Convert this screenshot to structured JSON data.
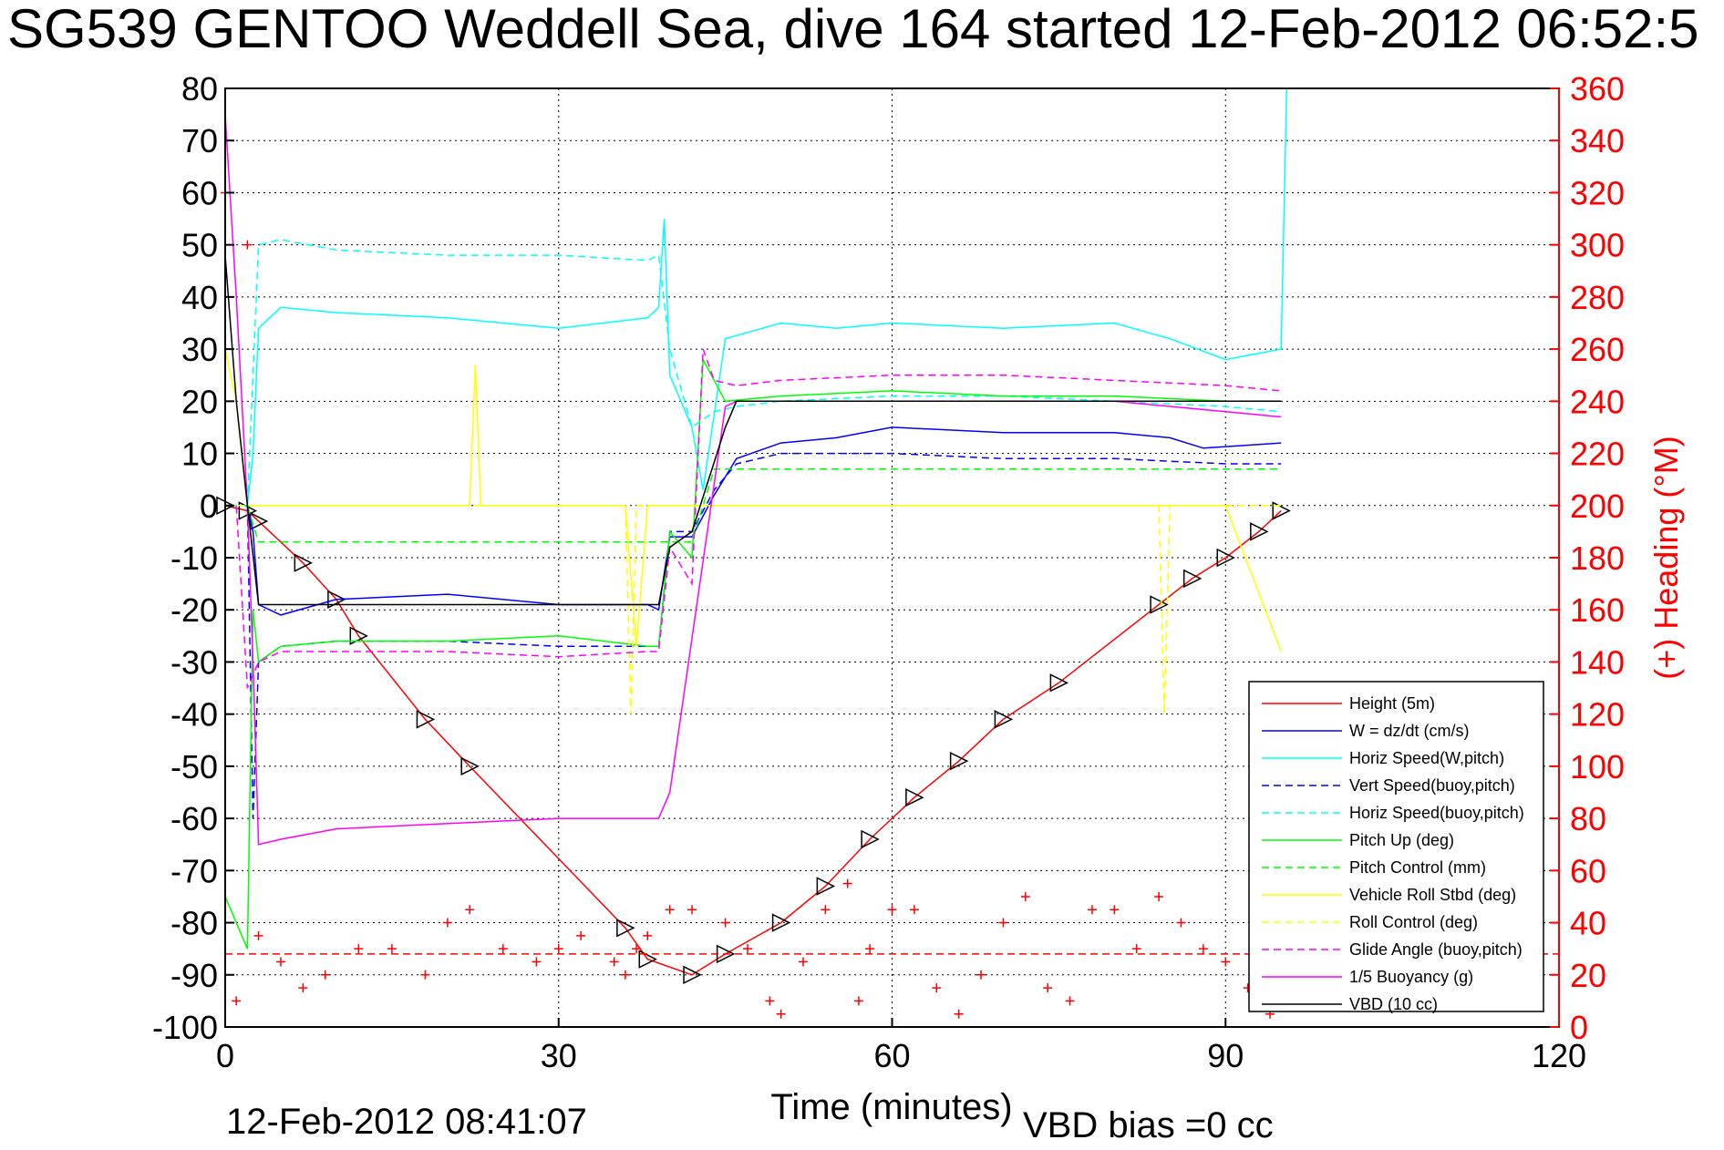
{
  "chart_data": {
    "type": "line",
    "title": "SG539 GENTOO Weddell Sea, dive 164 started 12-Feb-2012 06:52:5",
    "xlabel": "Time (minutes)",
    "ylabel_right": "(+) Heading (°M)",
    "xlim": [
      0,
      120
    ],
    "ylim": [
      -100,
      80
    ],
    "ylim_right": [
      0,
      360
    ],
    "x_ticks": [
      0,
      30,
      60,
      90,
      120
    ],
    "y_ticks": [
      80,
      70,
      60,
      50,
      40,
      30,
      20,
      10,
      0,
      -10,
      -20,
      -30,
      -40,
      -50,
      -60,
      -70,
      -80,
      -90,
      -100
    ],
    "y_ticks_right": [
      360,
      340,
      320,
      300,
      280,
      260,
      240,
      220,
      200,
      180,
      160,
      140,
      120,
      100,
      80,
      60,
      40,
      20,
      0
    ],
    "grid": true,
    "legend_position": "bottom-right",
    "footer_date": "12-Feb-2012 08:41:07",
    "footer_bias": "VBD bias =0 cc",
    "series": [
      {
        "name": "Height (5m)",
        "color": "#ff0000",
        "style": "solid",
        "markers": "triangles",
        "x": [
          0,
          2,
          3,
          7,
          10,
          12,
          18,
          22,
          36,
          38,
          42,
          45,
          50,
          54,
          58,
          62,
          66,
          70,
          75,
          84,
          87,
          90,
          93,
          95
        ],
        "y": [
          0,
          -1,
          -3,
          -11,
          -18,
          -25,
          -41,
          -50,
          -81,
          -87,
          -90,
          -86,
          -80,
          -73,
          -64,
          -56,
          -49,
          -41,
          -34,
          -19,
          -14,
          -10,
          -5,
          -1
        ]
      },
      {
        "name": "W = dz/dt (cm/s)",
        "color": "#0000ff",
        "style": "solid",
        "x": [
          0,
          1,
          2,
          2.5,
          3,
          5,
          10,
          20,
          30,
          38,
          39,
          40,
          42,
          44,
          46,
          50,
          55,
          60,
          70,
          80,
          85,
          88,
          95
        ],
        "y": [
          0,
          0,
          0,
          -5,
          -19,
          -21,
          -18,
          -17,
          -19,
          -19,
          -20,
          -6,
          -6,
          2,
          9,
          12,
          13,
          15,
          14,
          14,
          13,
          11,
          12
        ]
      },
      {
        "name": "Horiz Speed(W,pitch)",
        "color": "#00ffff",
        "style": "solid",
        "x": [
          0,
          1,
          2,
          2.5,
          3,
          5,
          10,
          20,
          30,
          38,
          39,
          39.5,
          40,
          42,
          43,
          45,
          50,
          55,
          60,
          70,
          80,
          85,
          90,
          95,
          95.5
        ],
        "y": [
          0,
          0,
          0,
          10,
          34,
          38,
          37,
          36,
          34,
          36,
          38,
          55,
          25,
          15,
          3,
          32,
          35,
          34,
          35,
          34,
          35,
          32,
          28,
          30,
          80
        ]
      },
      {
        "name": "Vert Speed(buoy,pitch)",
        "color": "#0000ff",
        "style": "dashed",
        "x": [
          0,
          1,
          2,
          2.5,
          3,
          5,
          10,
          20,
          30,
          38,
          39,
          40,
          42,
          44,
          46,
          50,
          60,
          70,
          80,
          90,
          95
        ],
        "y": [
          0,
          0,
          0,
          -60,
          -30,
          -27,
          -26,
          -26,
          -27,
          -27,
          -27,
          -5,
          -5,
          3,
          8,
          10,
          10,
          9,
          9,
          8,
          8
        ]
      },
      {
        "name": "Horiz Speed(buoy,pitch)",
        "color": "#00ffff",
        "style": "dashed",
        "x": [
          0,
          1,
          2,
          3,
          5,
          10,
          20,
          30,
          38,
          39,
          40,
          42,
          44,
          46,
          50,
          60,
          70,
          80,
          90,
          95
        ],
        "y": [
          0,
          0,
          0,
          50,
          51,
          49,
          48,
          48,
          47,
          48,
          30,
          15,
          18,
          19,
          20,
          21,
          21,
          20,
          19,
          18
        ]
      },
      {
        "name": "Pitch Up (deg)",
        "color": "#00ff00",
        "style": "solid",
        "x": [
          0,
          1,
          2,
          2.5,
          3,
          5,
          10,
          20,
          30,
          38,
          39,
          40,
          42,
          43,
          45,
          50,
          60,
          70,
          80,
          90,
          95
        ],
        "y": [
          -75,
          -80,
          -85,
          -20,
          -30,
          -27,
          -26,
          -26,
          -25,
          -27,
          -27,
          -5,
          -10,
          28,
          20,
          21,
          22,
          21,
          21,
          20,
          20
        ]
      },
      {
        "name": "Pitch Control (mm)",
        "color": "#00ff00",
        "style": "dashed",
        "x": [
          0,
          1,
          2,
          3,
          5,
          10,
          20,
          30,
          38,
          39,
          40,
          42,
          44,
          46,
          50,
          60,
          70,
          80,
          90,
          95
        ],
        "y": [
          0,
          0,
          0,
          -7,
          -7,
          -7,
          -7,
          -7,
          -7,
          -7,
          -7,
          -7,
          7,
          7,
          7,
          7,
          7,
          7,
          7,
          7
        ]
      },
      {
        "name": "Vehicle Roll Stbd (deg)",
        "color": "#ffff00",
        "style": "solid",
        "x": [
          0,
          1,
          2,
          3,
          5,
          10,
          20,
          22,
          22.5,
          23,
          30,
          36,
          37,
          38,
          40,
          45,
          50,
          60,
          70,
          80,
          90,
          95
        ],
        "y": [
          30,
          20,
          0,
          0,
          0,
          0,
          0,
          0,
          27,
          0,
          0,
          0,
          -27,
          0,
          0,
          0,
          0,
          0,
          0,
          0,
          0,
          -28
        ]
      },
      {
        "name": "Roll Control (deg)",
        "color": "#ffff00",
        "style": "dashed",
        "x": [
          0,
          1,
          2,
          3,
          5,
          10,
          20,
          30,
          36,
          36.5,
          37,
          40,
          45,
          50,
          60,
          70,
          80,
          84,
          84.5,
          85,
          90,
          95
        ],
        "y": [
          0,
          0,
          0,
          0,
          0,
          0,
          0,
          0,
          0,
          -40,
          0,
          0,
          0,
          0,
          0,
          0,
          0,
          0,
          -40,
          0,
          0,
          0
        ]
      },
      {
        "name": "Glide Angle (buoy,pitch)",
        "color": "#ff00ff",
        "style": "dashed",
        "x": [
          0,
          1,
          2,
          3,
          5,
          10,
          20,
          30,
          38,
          39,
          40,
          42,
          43,
          44,
          46,
          50,
          60,
          70,
          80,
          90,
          95
        ],
        "y": [
          0,
          0,
          -35,
          -30,
          -28,
          -28,
          -28,
          -29,
          -28,
          -28,
          -8,
          -15,
          30,
          24,
          23,
          24,
          25,
          25,
          24,
          23,
          22
        ]
      },
      {
        "name": "1/5 Buoyancy (g)",
        "color": "#ff00ff",
        "style": "solid",
        "x": [
          0,
          1,
          2,
          2.5,
          3,
          5,
          10,
          20,
          30,
          39,
          40,
          45,
          46,
          50,
          60,
          70,
          80,
          90,
          95
        ],
        "y": [
          75,
          40,
          0,
          -30,
          -65,
          -64,
          -62,
          -61,
          -60,
          -60,
          -55,
          19,
          20,
          20,
          20,
          20,
          20,
          18,
          17
        ]
      },
      {
        "name": "VBD (10 cc)",
        "color": "#000000",
        "style": "solid",
        "x": [
          0,
          1,
          2,
          3,
          5,
          10,
          20,
          30,
          39,
          40,
          42,
          45,
          46,
          50,
          60,
          70,
          80,
          90,
          95
        ],
        "y": [
          48,
          20,
          0,
          -19,
          -19,
          -19,
          -19,
          -19,
          -19,
          -8,
          -5,
          15,
          20,
          20,
          20,
          20,
          20,
          20,
          20
        ]
      }
    ],
    "heading_series": {
      "color": "#ff0000",
      "marker": "+",
      "axis": "right",
      "reference_line": 28,
      "x": [
        0,
        1,
        2,
        3,
        5,
        7,
        9,
        12,
        15,
        18,
        20,
        22,
        25,
        28,
        30,
        32,
        35,
        36,
        37,
        38,
        40,
        42,
        45,
        47,
        49,
        50,
        52,
        54,
        56,
        57,
        58,
        60,
        62,
        64,
        66,
        68,
        70,
        72,
        74,
        76,
        78,
        80,
        82,
        84,
        86,
        88,
        90,
        92,
        94
      ],
      "y": [
        320,
        10,
        300,
        35,
        25,
        15,
        20,
        30,
        30,
        20,
        40,
        45,
        30,
        25,
        30,
        35,
        25,
        20,
        30,
        35,
        45,
        45,
        40,
        30,
        10,
        5,
        25,
        45,
        55,
        10,
        30,
        45,
        45,
        15,
        5,
        20,
        40,
        50,
        15,
        10,
        45,
        45,
        30,
        50,
        40,
        30,
        25,
        15,
        5
      ]
    }
  }
}
